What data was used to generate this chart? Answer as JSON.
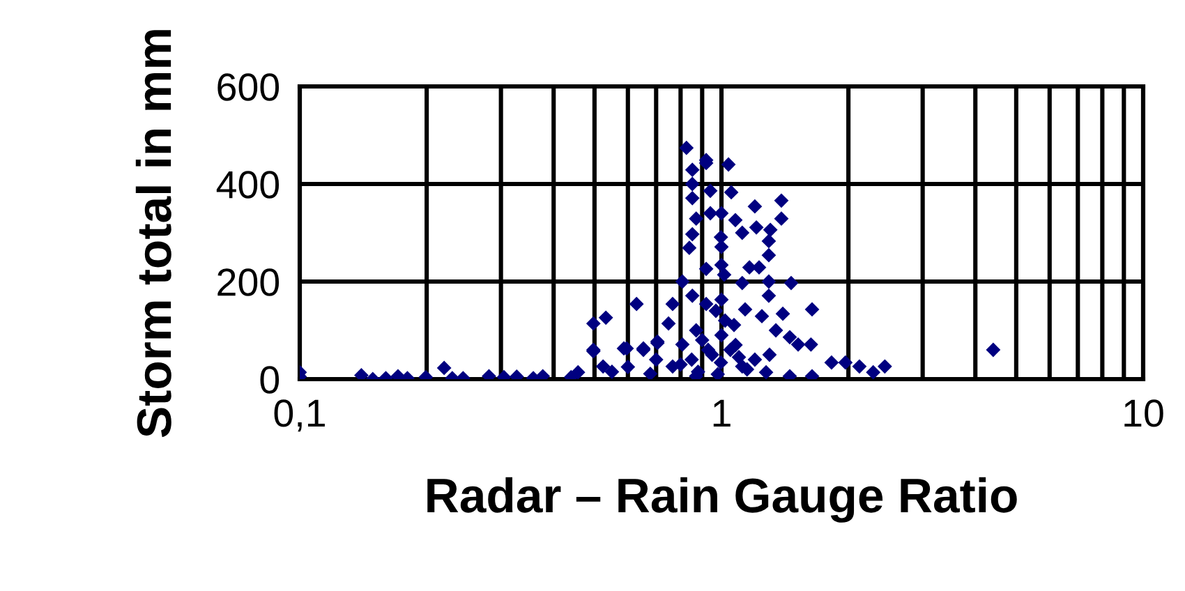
{
  "chart_data": {
    "type": "scatter",
    "xlabel": "Radar – Rain Gauge Ratio",
    "ylabel": "Storm total in mm",
    "log": "x",
    "xlim": [
      0.1,
      10
    ],
    "xticks": [
      {
        "value": 0.1,
        "label": "0,1"
      },
      1,
      10
    ],
    "ylim": [
      0,
      600
    ],
    "yticks": [
      0,
      200,
      400,
      600
    ],
    "grid": true,
    "marker": "diamond",
    "series": [
      {
        "color": "#000080",
        "x": [
          0.1,
          0.1,
          0.14,
          0.149,
          0.16,
          0.171,
          0.18,
          0.199,
          0.22,
          0.23,
          0.244,
          0.281,
          0.305,
          0.327,
          0.358,
          0.377,
          0.44,
          0.457,
          0.497,
          0.532,
          0.497,
          0.587,
          0.629,
          0.653,
          0.705,
          0.766,
          0.826,
          0.92,
          0.92,
          0.853,
          1.039,
          0.853,
          0.941,
          1.055,
          0.853,
          1.2,
          1.387,
          1.387,
          0.871,
          0.941,
          1.0,
          1.079,
          1.21,
          1.306,
          0.853,
          0.997,
          1.12,
          0.839,
          1.295,
          1.0,
          1.295,
          1.165,
          1.228,
          0.92,
          1.0,
          0.808,
          1.295,
          1.463,
          1.12,
          1.015,
          1.64,
          1.295,
          1.138,
          0.853,
          0.92,
          1.0,
          0.749,
          1.247,
          1.398,
          0.705,
          0.871,
          1.071,
          1.346,
          1.452,
          1.52,
          1.63,
          0.497,
          0.596,
          0.653,
          0.808,
          1.824,
          1.968,
          2.124,
          2.29,
          2.44,
          0.524,
          0.766,
          0.997,
          1.12,
          1.276,
          1.64,
          0.678,
          0.871,
          1.452,
          4.41,
          0.95,
          1.05,
          0.9,
          1.1,
          0.85,
          1.0,
          1.02,
          0.97,
          0.93,
          1.08,
          0.8,
          1.2,
          0.88,
          1.15,
          0.98,
          1.3,
          0.7,
          0.6,
          0.55
        ],
        "values": [
          14,
          5,
          8,
          0,
          2,
          6,
          2,
          4,
          23,
          2,
          2,
          6,
          4,
          5,
          2,
          6,
          4,
          14,
          114,
          126,
          60,
          63,
          154,
          63,
          74,
          154,
          474,
          443,
          449,
          429,
          440,
          400,
          386,
          383,
          371,
          354,
          366,
          329,
          329,
          340,
          340,
          326,
          311,
          306,
          297,
          291,
          300,
          269,
          283,
          271,
          254,
          229,
          229,
          226,
          234,
          200,
          200,
          197,
          197,
          214,
          143,
          171,
          143,
          171,
          154,
          163,
          114,
          129,
          134,
          77,
          100,
          111,
          100,
          86,
          71,
          71,
          57,
          63,
          60,
          71,
          34,
          34,
          26,
          14,
          26,
          26,
          26,
          34,
          26,
          14,
          6,
          11,
          6,
          6,
          60,
          50,
          60,
          80,
          45,
          40,
          90,
          120,
          140,
          60,
          70,
          30,
          40,
          15,
          20,
          10,
          50,
          40,
          25,
          15
        ]
      }
    ]
  }
}
